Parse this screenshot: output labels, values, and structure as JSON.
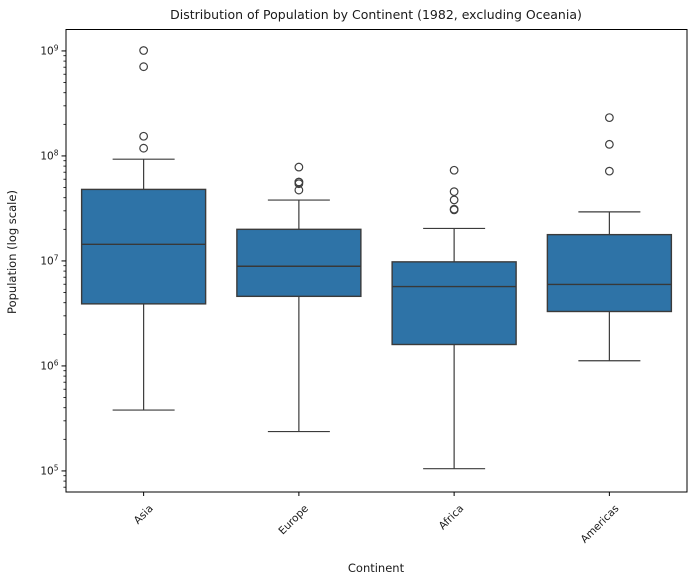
{
  "figure": {
    "title": "Distribution of Population by Continent (1982, excluding Oceania)",
    "xlabel": "Continent",
    "ylabel": "Population (log scale)"
  },
  "chart_data": {
    "type": "box",
    "title": "Distribution of Population by Continent (1982, excluding Oceania)",
    "xlabel": "Continent",
    "ylabel": "Population (log scale)",
    "y_scale": "log10",
    "ylim": [
      63000,
      1600000000
    ],
    "y_major_ticks": [
      {
        "value": 100000,
        "base": "10",
        "exponent": "5"
      },
      {
        "value": 1000000,
        "base": "10",
        "exponent": "6"
      },
      {
        "value": 10000000,
        "base": "10",
        "exponent": "7"
      },
      {
        "value": 100000000,
        "base": "10",
        "exponent": "8"
      },
      {
        "value": 1000000000,
        "base": "10",
        "exponent": "9"
      }
    ],
    "grid": false,
    "categories": [
      "Asia",
      "Europe",
      "Africa",
      "Americas"
    ],
    "series": [
      {
        "name": "Asia",
        "whisker_low": 380000,
        "q1": 3900000,
        "median": 14400000,
        "q3": 48000000,
        "whisker_high": 93100000,
        "outliers": [
          118500000,
          154000000,
          708000000,
          1009000000
        ]
      },
      {
        "name": "Europe",
        "whisker_low": 237000,
        "q1": 4600000,
        "median": 8900000,
        "q3": 20000000,
        "whisker_high": 38000000,
        "outliers": [
          47300000,
          54400000,
          56350000,
          56500000,
          78300000
        ]
      },
      {
        "name": "Africa",
        "whisker_low": 105000,
        "q1": 1600000,
        "median": 5700000,
        "q3": 9800000,
        "whisker_high": 20400000,
        "outliers": [
          30650000,
          31140000,
          38110000,
          45680000,
          73040000
        ]
      },
      {
        "name": "Americas",
        "whisker_low": 1120000,
        "q1": 3300000,
        "median": 5970000,
        "q3": 17800000,
        "whisker_high": 29340000,
        "outliers": [
          71640000,
          128960000,
          231660000
        ]
      }
    ],
    "colors": {
      "box_fill": "#2E73A7",
      "box_edge": "#3b3b3b",
      "whisker": "#3b3b3b",
      "median": "#383838",
      "outlier_edge": "#3f3f3f",
      "spine": "#000000",
      "background": "#ffffff"
    }
  }
}
